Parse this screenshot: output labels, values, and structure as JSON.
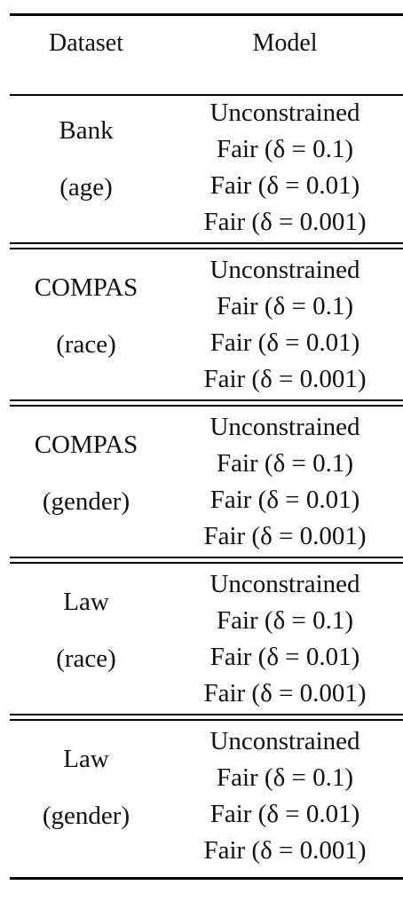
{
  "table": {
    "headers": {
      "dataset": "Dataset",
      "model": "Model"
    },
    "groups": [
      {
        "dataset": "Bank",
        "attribute": "(age)",
        "models": [
          "Unconstrained",
          "Fair (δ = 0.1)",
          "Fair (δ = 0.01)",
          "Fair (δ = 0.001)"
        ]
      },
      {
        "dataset": "COMPAS",
        "attribute": "(race)",
        "models": [
          "Unconstrained",
          "Fair (δ = 0.1)",
          "Fair (δ = 0.01)",
          "Fair (δ = 0.001)"
        ]
      },
      {
        "dataset": "COMPAS",
        "attribute": "(gender)",
        "models": [
          "Unconstrained",
          "Fair (δ = 0.1)",
          "Fair (δ = 0.01)",
          "Fair (δ = 0.001)"
        ]
      },
      {
        "dataset": "Law",
        "attribute": "(race)",
        "models": [
          "Unconstrained",
          "Fair (δ = 0.1)",
          "Fair (δ = 0.01)",
          "Fair (δ = 0.001)"
        ]
      },
      {
        "dataset": "Law",
        "attribute": "(gender)",
        "models": [
          "Unconstrained",
          "Fair (δ = 0.1)",
          "Fair (δ = 0.01)",
          "Fair (δ = 0.001)"
        ]
      }
    ]
  }
}
